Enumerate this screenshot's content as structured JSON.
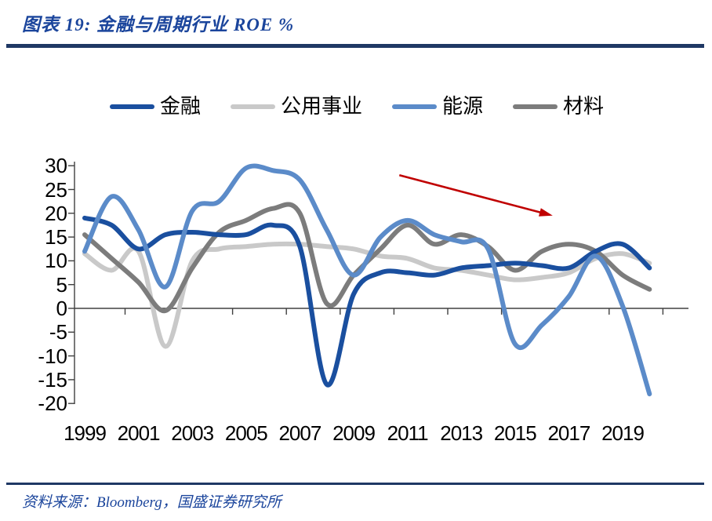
{
  "header": {
    "title": "图表 19: 金融与周期行业 ROE %"
  },
  "footer": {
    "source": "资料来源：Bloomberg，国盛证券研究所"
  },
  "colors": {
    "title_text": "#1B459C",
    "rule": "#1F3864",
    "axis": "#404040"
  },
  "chart_data": {
    "type": "line",
    "title": "金融与周期行业 ROE %",
    "xlabel": "",
    "ylabel": "ROE %",
    "x_start": 1999,
    "x_end": 2020,
    "ylim": [
      -20,
      30
    ],
    "grid": false,
    "legend_position": "top",
    "y_ticks": [
      30,
      25,
      20,
      15,
      10,
      5,
      0,
      -5,
      -10,
      -15,
      -20
    ],
    "x_tick_labels": [
      "1999",
      "2001",
      "2003",
      "2005",
      "2007",
      "2009",
      "2011",
      "2013",
      "2015",
      "2017",
      "2019"
    ],
    "series": [
      {
        "key": "finance",
        "name": "金融",
        "color": "#1A4F9F",
        "values": [
          19,
          17.5,
          12.5,
          15.5,
          16,
          15.5,
          15.5,
          17.5,
          13,
          -16,
          3,
          7.5,
          7.5,
          7,
          8.5,
          9,
          9.5,
          9,
          8.5,
          12,
          13.5,
          8.5
        ]
      },
      {
        "key": "utilities",
        "name": "公用事业",
        "color": "#C9C9C9",
        "values": [
          11.5,
          8,
          12,
          -8,
          10,
          12.5,
          13,
          13.5,
          13.5,
          13,
          12.5,
          11,
          10.5,
          8.5,
          8,
          7,
          6,
          6.5,
          7.5,
          10.5,
          11.5,
          9.5
        ]
      },
      {
        "key": "energy",
        "name": "能源",
        "color": "#5B8BC9",
        "values": [
          12,
          23.5,
          16.5,
          4.5,
          20.5,
          22.5,
          29.5,
          29,
          27,
          16.5,
          7,
          15,
          18.5,
          15.5,
          14,
          12.5,
          -7.5,
          -3.5,
          2.5,
          11,
          0.5,
          -18
        ]
      },
      {
        "key": "materials",
        "name": "材料",
        "color": "#7C7C7C",
        "values": [
          15.5,
          10.5,
          5.5,
          -0.5,
          8.5,
          16,
          18.5,
          21,
          20,
          1,
          7,
          12.5,
          17.5,
          13.5,
          15.5,
          13,
          8,
          12,
          13.5,
          12,
          7,
          4
        ]
      }
    ],
    "annotation_arrow": {
      "color": "#C00000",
      "from_year": 2010.7,
      "from_value": 28,
      "to_year": 2016.4,
      "to_value": 19.5
    }
  }
}
